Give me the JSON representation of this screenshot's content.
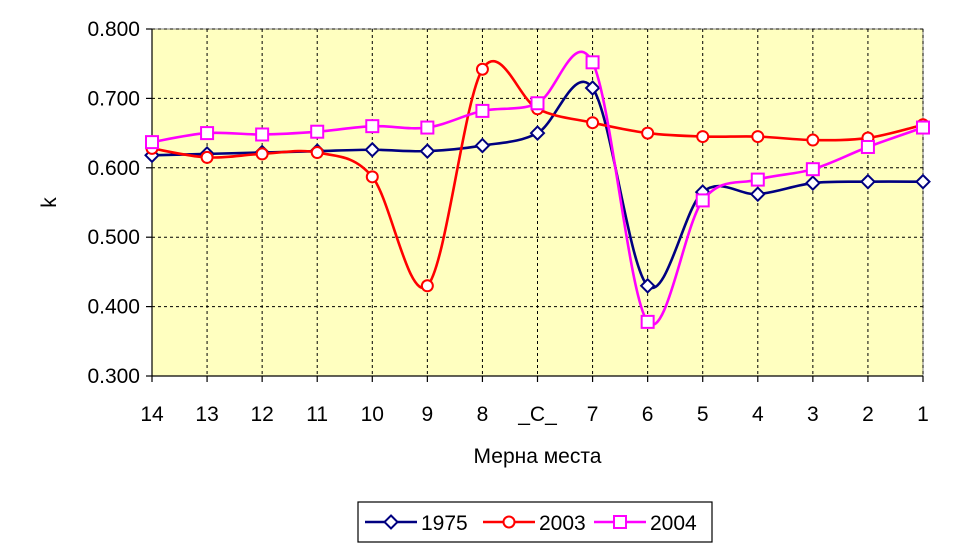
{
  "chart_data": {
    "type": "line",
    "title": "",
    "xlabel": "Мерна места",
    "ylabel": "k",
    "categories": [
      "14",
      "13",
      "12",
      "11",
      "10",
      "9",
      "8",
      "_C_",
      "7",
      "6",
      "5",
      "4",
      "3",
      "2",
      "1"
    ],
    "ylim": [
      0.3,
      0.8
    ],
    "yticks": [
      "0.300",
      "0.400",
      "0.500",
      "0.600",
      "0.700",
      "0.800"
    ],
    "grid": true,
    "plot_background": "#ffffc0",
    "legend_position": "bottom",
    "series": [
      {
        "name": "1975",
        "color": "#000080",
        "marker": "diamond",
        "values": [
          0.618,
          0.62,
          0.622,
          0.624,
          0.626,
          0.624,
          0.632,
          0.65,
          0.715,
          0.43,
          0.565,
          0.562,
          0.578,
          0.58,
          0.58
        ]
      },
      {
        "name": "2003",
        "color": "#ff0000",
        "marker": "circle",
        "values": [
          0.628,
          0.615,
          0.62,
          0.622,
          0.587,
          0.43,
          0.742,
          0.685,
          0.665,
          0.65,
          0.645,
          0.645,
          0.64,
          0.643,
          0.662
        ]
      },
      {
        "name": "2004",
        "color": "#ff00ff",
        "marker": "square",
        "values": [
          0.637,
          0.65,
          0.648,
          0.652,
          0.66,
          0.658,
          0.682,
          0.693,
          0.752,
          0.378,
          0.553,
          0.583,
          0.598,
          0.63,
          0.658
        ]
      }
    ]
  }
}
